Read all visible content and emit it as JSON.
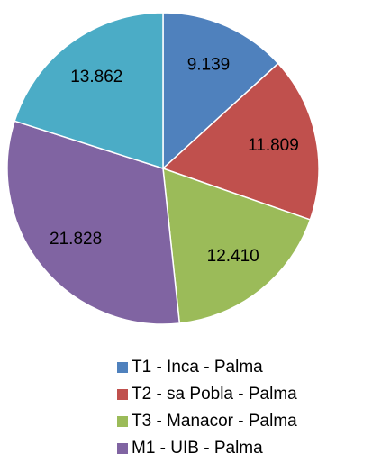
{
  "chart_data": {
    "type": "pie",
    "categories": [
      "T1 - Inca - Palma",
      "T2 - sa Pobla - Palma",
      "T3 - Manacor - Palma",
      "M1 - UIB - Palma",
      null
    ],
    "values": [
      9139,
      11809,
      12410,
      21828,
      13862
    ],
    "value_labels": [
      "9.139",
      "11.809",
      "12.410",
      "21.828",
      "13.862"
    ],
    "colors": [
      "#4f81bd",
      "#c0504d",
      "#9bbb59",
      "#8064a2",
      "#4bacc6"
    ],
    "legend": "bottom"
  }
}
